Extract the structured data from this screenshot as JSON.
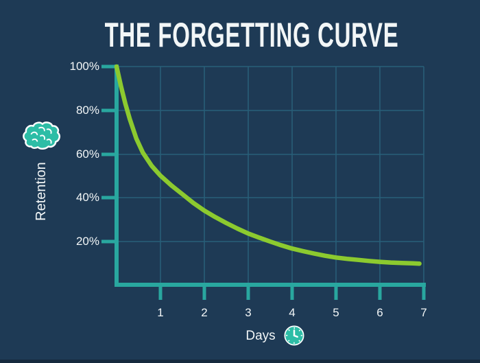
{
  "title": "THE FORGETTING CURVE",
  "y_axis": {
    "label": "Retention",
    "tick_labels": [
      "100%",
      "80%",
      "60%",
      "40%",
      "20%"
    ]
  },
  "x_axis": {
    "label": "Days",
    "tick_labels": [
      "1",
      "2",
      "3",
      "4",
      "5",
      "6",
      "7"
    ]
  },
  "icons": {
    "brain": "brain-icon",
    "clock": "clock-icon"
  },
  "colors": {
    "bg": "#1e3a55",
    "axis": "#29a79f",
    "grid": "#2a647e",
    "curve": "#8cca2f",
    "text": "#f2f6f7",
    "icon": "#2dbda6",
    "strip": "#162a3e"
  },
  "chart_data": {
    "type": "line",
    "title": "THE FORGETTING CURVE",
    "xlabel": "Days",
    "ylabel": "Retention",
    "xlim": [
      0,
      7
    ],
    "ylim": [
      0,
      100
    ],
    "x_ticks": [
      1,
      2,
      3,
      4,
      5,
      6,
      7
    ],
    "y_ticks": [
      "100%",
      "80%",
      "60%",
      "40%",
      "20%"
    ],
    "grid": true,
    "legend": false,
    "series": [
      {
        "name": "Retention (%)",
        "x": [
          0,
          1,
          2,
          3,
          4,
          5,
          6,
          7
        ],
        "y": [
          100,
          50,
          34,
          23.5,
          16.5,
          12.5,
          10.5,
          9.7
        ]
      }
    ],
    "curve_points": [
      [
        0,
        100
      ],
      [
        0.1,
        91
      ],
      [
        0.2,
        83
      ],
      [
        0.3,
        76
      ],
      [
        0.45,
        67
      ],
      [
        0.6,
        60.5
      ],
      [
        0.8,
        54.5
      ],
      [
        1,
        50
      ],
      [
        1.25,
        45.5
      ],
      [
        1.5,
        41.5
      ],
      [
        1.75,
        37.5
      ],
      [
        2,
        34
      ],
      [
        2.25,
        31
      ],
      [
        2.5,
        28.3
      ],
      [
        2.75,
        25.8
      ],
      [
        3,
        23.5
      ],
      [
        3.25,
        21.6
      ],
      [
        3.5,
        19.8
      ],
      [
        3.75,
        18.1
      ],
      [
        4,
        16.6
      ],
      [
        4.25,
        15.4
      ],
      [
        4.5,
        14.3
      ],
      [
        4.75,
        13.3
      ],
      [
        5,
        12.5
      ],
      [
        5.25,
        11.9
      ],
      [
        5.5,
        11.4
      ],
      [
        5.75,
        10.9
      ],
      [
        6,
        10.5
      ],
      [
        6.25,
        10.2
      ],
      [
        6.5,
        10
      ],
      [
        6.75,
        9.8
      ],
      [
        6.9,
        9.7
      ]
    ]
  }
}
